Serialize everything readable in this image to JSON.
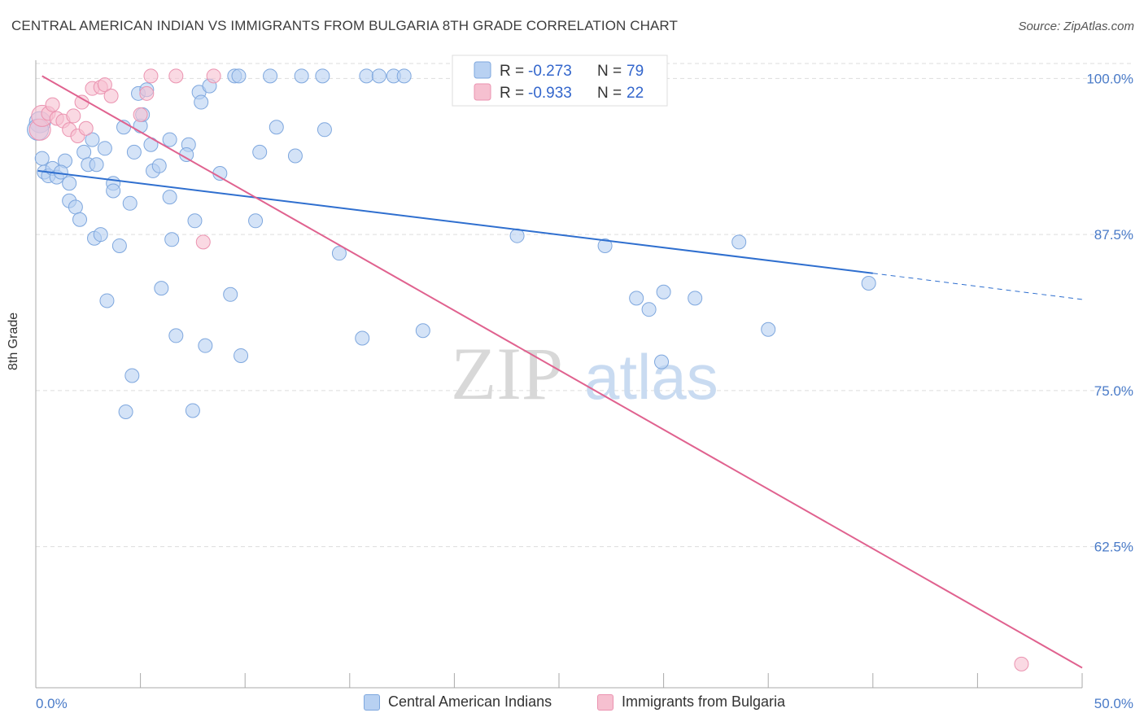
{
  "title": "CENTRAL AMERICAN INDIAN VS IMMIGRANTS FROM BULGARIA 8TH GRADE CORRELATION CHART",
  "source": "Source: ZipAtlas.com",
  "watermark": {
    "zip": "ZIP",
    "atlas": "atlas"
  },
  "colors": {
    "blue_fill": "#b8d1f2",
    "blue_stroke": "#7ea7de",
    "blue_line": "#2f6fcf",
    "pink_fill": "#f6c0d0",
    "pink_stroke": "#eb93b0",
    "pink_line": "#e0628f",
    "grid": "#dddddd",
    "tick_text": "#4a7bc8"
  },
  "legend_box": {
    "rows": [
      {
        "r_label": "R = ",
        "r_value": "-0.273",
        "n_label": "N = ",
        "n_value": "79"
      },
      {
        "r_label": "R = ",
        "r_value": "-0.933",
        "n_label": "N = ",
        "n_value": "22"
      }
    ]
  },
  "bottom_legend": {
    "series_a": "Central American Indians",
    "series_b": "Immigrants from Bulgaria"
  },
  "chart_data": {
    "type": "scatter",
    "title": "CENTRAL AMERICAN INDIAN VS IMMIGRANTS FROM BULGARIA 8TH GRADE CORRELATION CHART",
    "xlabel": "",
    "ylabel": "8th Grade",
    "xlim": [
      0,
      50
    ],
    "ylim": [
      51.2,
      101.2
    ],
    "x_tick_labels": [
      "0.0%",
      "50.0%"
    ],
    "y_ticks": [
      62.5,
      75.0,
      87.5,
      100.0
    ],
    "y_tick_labels": [
      "62.5%",
      "75.0%",
      "87.5%",
      "100.0%"
    ],
    "grid": true,
    "series": [
      {
        "name": "Central American Indians",
        "r": -0.273,
        "n": 79,
        "trend": {
          "x0": 0.1,
          "y0": 92.6,
          "x1": 40,
          "y1": 84.4,
          "dash_to_x": 50,
          "dash_to_y": 82.3
        },
        "points": [
          [
            0.3,
            93.6
          ],
          [
            0.4,
            92.5
          ],
          [
            0.6,
            92.2
          ],
          [
            0.8,
            92.8
          ],
          [
            1.0,
            92.1
          ],
          [
            1.4,
            93.4
          ],
          [
            1.2,
            92.5
          ],
          [
            1.6,
            91.6
          ],
          [
            1.6,
            90.2
          ],
          [
            1.9,
            89.7
          ],
          [
            2.1,
            88.7
          ],
          [
            2.3,
            94.1
          ],
          [
            2.5,
            93.1
          ],
          [
            2.7,
            95.1
          ],
          [
            2.8,
            87.2
          ],
          [
            2.9,
            93.1
          ],
          [
            3.1,
            87.5
          ],
          [
            3.3,
            94.4
          ],
          [
            3.4,
            82.2
          ],
          [
            3.7,
            91.6
          ],
          [
            3.7,
            91.0
          ],
          [
            4.0,
            86.6
          ],
          [
            4.2,
            96.1
          ],
          [
            4.3,
            73.3
          ],
          [
            4.5,
            90.0
          ],
          [
            4.6,
            76.2
          ],
          [
            4.7,
            94.1
          ],
          [
            4.9,
            98.8
          ],
          [
            5.0,
            96.2
          ],
          [
            5.1,
            97.1
          ],
          [
            5.3,
            99.1
          ],
          [
            5.5,
            94.7
          ],
          [
            5.6,
            92.6
          ],
          [
            5.9,
            93.0
          ],
          [
            6.0,
            83.2
          ],
          [
            6.4,
            95.1
          ],
          [
            6.4,
            90.5
          ],
          [
            6.5,
            87.1
          ],
          [
            6.7,
            79.4
          ],
          [
            7.3,
            94.7
          ],
          [
            7.2,
            93.9
          ],
          [
            7.5,
            73.4
          ],
          [
            7.6,
            88.6
          ],
          [
            7.8,
            98.9
          ],
          [
            7.9,
            98.1
          ],
          [
            8.1,
            78.6
          ],
          [
            8.3,
            99.4
          ],
          [
            8.8,
            92.4
          ],
          [
            9.3,
            82.7
          ],
          [
            9.5,
            100.2
          ],
          [
            9.7,
            100.2
          ],
          [
            9.8,
            77.8
          ],
          [
            10.5,
            88.6
          ],
          [
            10.7,
            94.1
          ],
          [
            11.2,
            100.2
          ],
          [
            11.5,
            96.1
          ],
          [
            12.4,
            93.8
          ],
          [
            12.7,
            100.2
          ],
          [
            13.7,
            100.2
          ],
          [
            13.8,
            95.9
          ],
          [
            14.5,
            86.0
          ],
          [
            15.6,
            79.2
          ],
          [
            15.8,
            100.2
          ],
          [
            16.4,
            100.2
          ],
          [
            17.1,
            100.2
          ],
          [
            17.6,
            100.2
          ],
          [
            18.5,
            79.8
          ],
          [
            23.0,
            87.4
          ],
          [
            27.2,
            86.6
          ],
          [
            28.7,
            82.4
          ],
          [
            29.3,
            81.5
          ],
          [
            29.9,
            77.3
          ],
          [
            30.0,
            82.9
          ],
          [
            31.5,
            82.4
          ],
          [
            33.6,
            86.9
          ],
          [
            35.0,
            79.9
          ],
          [
            39.8,
            83.6
          ],
          [
            0.2,
            96.5
          ],
          [
            0.1,
            95.9
          ]
        ]
      },
      {
        "name": "Immigrants from Bulgaria",
        "r": -0.933,
        "n": 22,
        "trend": {
          "x0": 0.3,
          "y0": 100.2,
          "x1": 50,
          "y1": 52.8
        },
        "points": [
          [
            0.2,
            95.9
          ],
          [
            0.3,
            97.0
          ],
          [
            0.6,
            97.2
          ],
          [
            0.8,
            97.9
          ],
          [
            1.0,
            96.8
          ],
          [
            1.3,
            96.6
          ],
          [
            1.6,
            95.9
          ],
          [
            1.8,
            97.0
          ],
          [
            2.0,
            95.4
          ],
          [
            2.2,
            98.1
          ],
          [
            2.4,
            96.0
          ],
          [
            2.7,
            99.2
          ],
          [
            3.1,
            99.3
          ],
          [
            3.3,
            99.5
          ],
          [
            3.6,
            98.6
          ],
          [
            5.0,
            97.1
          ],
          [
            5.3,
            98.8
          ],
          [
            5.5,
            100.2
          ],
          [
            6.7,
            100.2
          ],
          [
            8.0,
            86.9
          ],
          [
            8.5,
            100.2
          ],
          [
            47.1,
            53.1
          ]
        ]
      }
    ]
  }
}
